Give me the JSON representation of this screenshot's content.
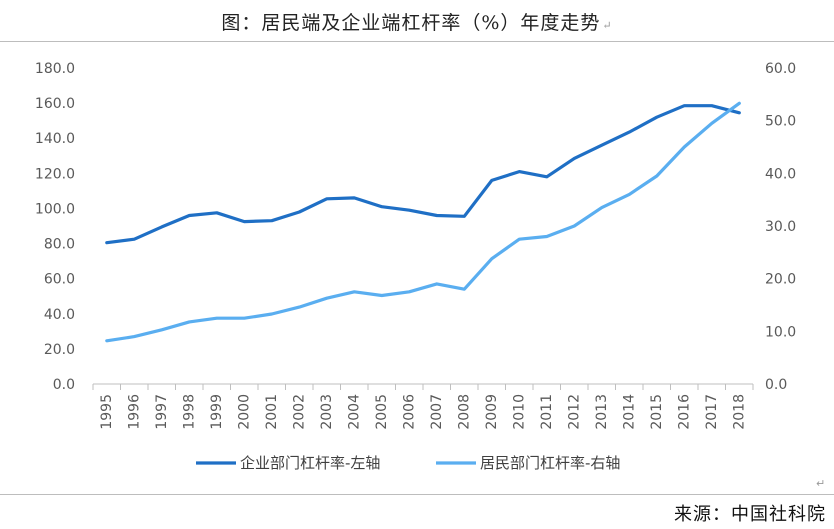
{
  "title": "图：居民端及企业端杠杆率（%）年度走势",
  "title_mark": "↵",
  "source": "来源：中国社科院",
  "return_mark": "↵",
  "chart_data": {
    "type": "line",
    "title": "图：居民端及企业端杠杆率（%）年度走势",
    "x": [
      "1995",
      "1996",
      "1997",
      "1998",
      "1999",
      "2000",
      "2001",
      "2002",
      "2003",
      "2004",
      "2005",
      "2006",
      "2007",
      "2008",
      "2009",
      "2010",
      "2011",
      "2012",
      "2013",
      "2014",
      "2015",
      "2016",
      "2017",
      "2018"
    ],
    "y_left": {
      "ylim": [
        0,
        180
      ],
      "ticks": [
        "0.0",
        "20.0",
        "40.0",
        "60.0",
        "80.0",
        "100.0",
        "120.0",
        "140.0",
        "160.0",
        "180.0"
      ]
    },
    "y_right": {
      "ylim": [
        0,
        60
      ],
      "ticks": [
        "0.0",
        "10.0",
        "20.0",
        "30.0",
        "40.0",
        "50.0",
        "60.0"
      ]
    },
    "grid": false,
    "legend_position": "bottom",
    "series": [
      {
        "name": "企业部门杠杆率-左轴",
        "axis": "left",
        "color": "#1f6fc5",
        "values": [
          80.5,
          82.5,
          89.5,
          96,
          97.5,
          92.5,
          93,
          98,
          105.5,
          106,
          101,
          99,
          96,
          95.5,
          116,
          121,
          118,
          128.5,
          136,
          143.5,
          152,
          158.5,
          158.5,
          154.5
        ]
      },
      {
        "name": "居民部门杠杆率-右轴",
        "axis": "right",
        "color": "#5aaef0",
        "values": [
          8.2,
          9,
          10.3,
          11.8,
          12.5,
          12.5,
          13.3,
          14.6,
          16.3,
          17.5,
          16.8,
          17.5,
          19,
          18,
          23.8,
          27.5,
          28,
          30,
          33.5,
          36,
          39.5,
          45,
          49.5,
          53.3
        ]
      }
    ]
  }
}
